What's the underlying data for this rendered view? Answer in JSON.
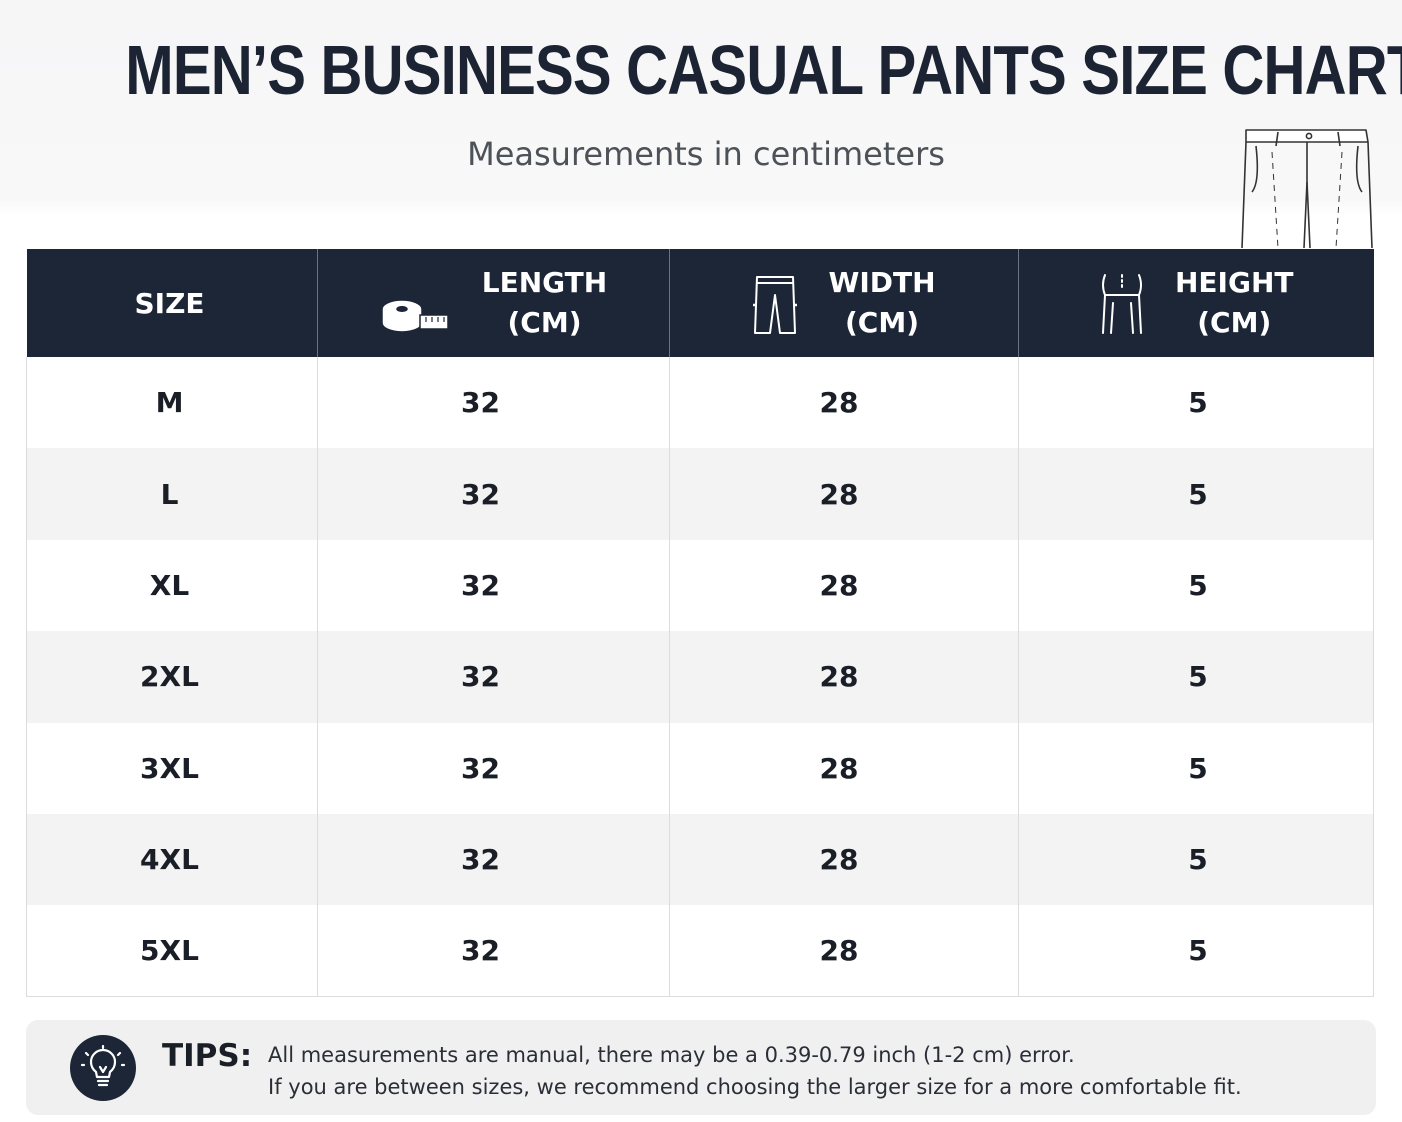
{
  "header": {
    "title": "MEN’S BUSINESS CASUAL PANTS SIZE CHART",
    "subtitle": "Measurements in centimeters",
    "hero_icon": "pants-outline-icon"
  },
  "table": {
    "columns": [
      {
        "line1": "SIZE",
        "line2": "",
        "icon": ""
      },
      {
        "line1": "LENGTH",
        "line2": "(CM)",
        "icon": "tape-measure-icon"
      },
      {
        "line1": "WIDTH",
        "line2": "(CM)",
        "icon": "pants-width-icon"
      },
      {
        "line1": "HEIGHT",
        "line2": "(CM)",
        "icon": "waist-height-icon"
      }
    ],
    "rows": [
      {
        "size": "M",
        "length": "32",
        "width": "28",
        "height": "5"
      },
      {
        "size": "L",
        "length": "32",
        "width": "28",
        "height": "5"
      },
      {
        "size": "XL",
        "length": "32",
        "width": "28",
        "height": "5"
      },
      {
        "size": "2XL",
        "length": "32",
        "width": "28",
        "height": "5"
      },
      {
        "size": "3XL",
        "length": "32",
        "width": "28",
        "height": "5"
      },
      {
        "size": "4XL",
        "length": "32",
        "width": "28",
        "height": "5"
      },
      {
        "size": "5XL",
        "length": "32",
        "width": "28",
        "height": "5"
      }
    ]
  },
  "tips": {
    "label": "TIPS:",
    "icon": "lightbulb-icon",
    "lines": [
      "All measurements are manual, there may be a 0.39-0.79 inch (1-2 cm) error.",
      "If you are between sizes, we recommend choosing the larger size for a more comfortable fit."
    ]
  },
  "colors": {
    "header_bg": "#1c2636",
    "title_text": "#1c2434",
    "zebra": "#f3f3f4"
  }
}
